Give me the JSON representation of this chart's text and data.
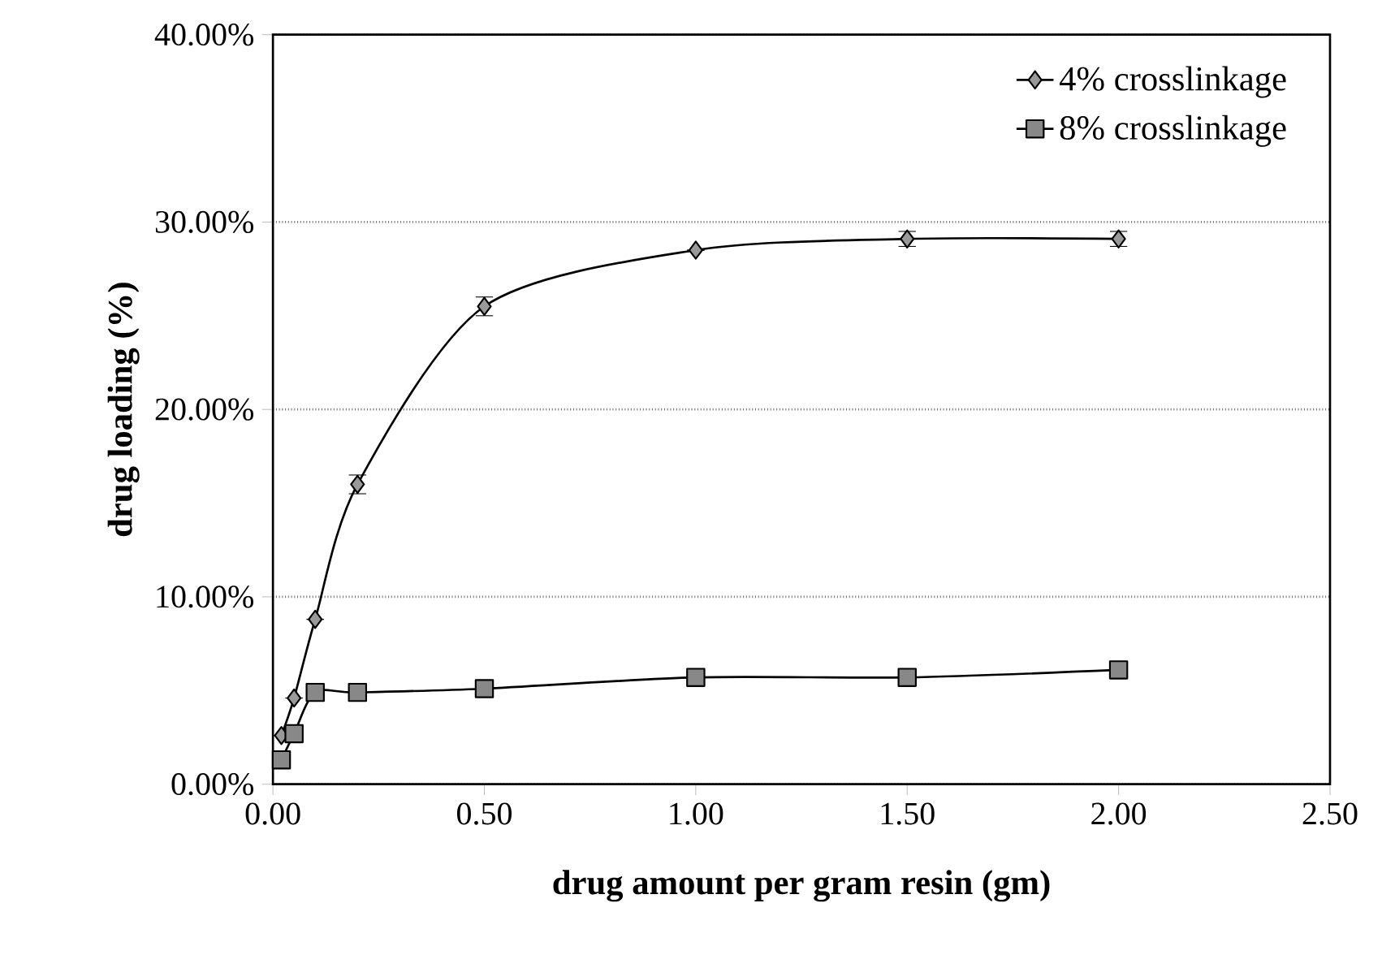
{
  "chart_data": {
    "type": "line",
    "xlabel": "drug amount per gram resin (gm)",
    "ylabel": "drug loading (%)",
    "xlim": [
      0,
      2.5
    ],
    "xticks": [
      {
        "value": 0,
        "label": "0.00"
      },
      {
        "value": 0.5,
        "label": "0.50"
      },
      {
        "value": 1,
        "label": "1.00"
      },
      {
        "value": 1.5,
        "label": "1.50"
      },
      {
        "value": 2,
        "label": "2.00"
      },
      {
        "value": 2.5,
        "label": "2.50"
      }
    ],
    "ylim": [
      0,
      40
    ],
    "yticks": [
      {
        "value": 0,
        "label": "0.00%"
      },
      {
        "value": 10,
        "label": "10.00%"
      },
      {
        "value": 20,
        "label": "20.00%"
      },
      {
        "value": 30,
        "label": "30.00%"
      },
      {
        "value": 40,
        "label": "40.00%"
      }
    ],
    "grid": "y",
    "legend": "top right",
    "x": [
      0.02,
      0.05,
      0.1,
      0.2,
      0.5,
      1.0,
      1.5,
      2.0
    ],
    "series": [
      {
        "name": "4% crosslinkage",
        "color": "#999999",
        "marker": "diamond",
        "values": [
          2.6,
          4.6,
          8.8,
          16.0,
          25.5,
          28.5,
          29.1,
          29.1
        ],
        "errors": [
          null,
          null,
          null,
          0.5,
          0.5,
          null,
          0.4,
          0.4
        ]
      },
      {
        "name": "8% crosslinkage",
        "color": "#888888",
        "marker": "square",
        "values": [
          1.3,
          2.7,
          4.9,
          4.9,
          5.1,
          5.7,
          5.7,
          6.1
        ],
        "errors": [
          0.3,
          0.3,
          null,
          null,
          null,
          null,
          null,
          0.3
        ]
      }
    ]
  }
}
